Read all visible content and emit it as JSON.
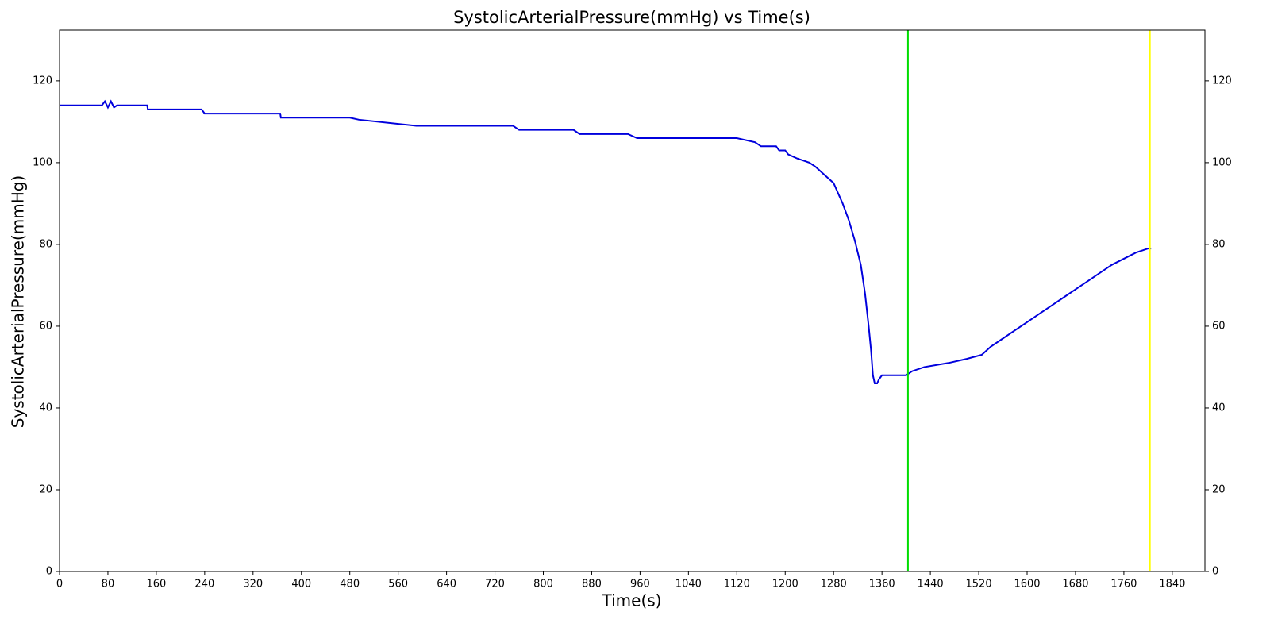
{
  "chart_data": {
    "type": "line",
    "title": "SystolicArterialPressure(mmHg) vs Time(s)",
    "x_label": "Time(s)",
    "y_label": "SystolicArterialPressure(mmHg)",
    "x": [
      0,
      70,
      75,
      80,
      85,
      90,
      95,
      145,
      146,
      175,
      235,
      240,
      320,
      365,
      366,
      400,
      480,
      495,
      590,
      750,
      760,
      850,
      860,
      940,
      955,
      1040,
      1120,
      1150,
      1160,
      1185,
      1190,
      1200,
      1205,
      1220,
      1240,
      1250,
      1265,
      1280,
      1295,
      1305,
      1315,
      1325,
      1332,
      1338,
      1342,
      1345,
      1348,
      1352,
      1355,
      1360,
      1400,
      1410,
      1430,
      1470,
      1500,
      1525,
      1540,
      1560,
      1580,
      1600,
      1620,
      1640,
      1660,
      1680,
      1700,
      1720,
      1740,
      1760,
      1780,
      1800,
      1805
    ],
    "series": [
      {
        "name": "SystolicArterialPressure(mmHg)",
        "color": "#0000dd",
        "values": [
          114,
          114,
          115,
          113.5,
          115,
          113.5,
          114,
          114,
          113,
          113,
          113,
          112,
          112,
          112,
          111,
          111,
          111,
          110.5,
          109,
          109,
          108,
          108,
          107,
          107,
          106,
          106,
          106,
          105,
          104,
          104,
          103,
          103,
          102,
          101,
          100,
          99,
          97,
          95,
          90,
          86,
          81,
          75,
          68,
          60,
          54,
          48,
          46,
          46,
          47,
          48,
          48,
          49,
          50,
          51,
          52,
          53,
          55,
          57,
          59,
          61,
          63,
          65,
          67,
          69,
          71,
          73,
          75,
          76.5,
          78,
          79,
          79
        ]
      }
    ],
    "vlines": [
      {
        "x": 1403,
        "color": "#00dd00"
      },
      {
        "x": 1803,
        "color": "#ffff00"
      }
    ],
    "xlim": [
      0,
      1894
    ],
    "xticks": [
      0,
      80,
      160,
      240,
      320,
      400,
      480,
      560,
      640,
      720,
      800,
      880,
      960,
      1040,
      1120,
      1200,
      1280,
      1360,
      1440,
      1520,
      1600,
      1680,
      1760,
      1840
    ],
    "ylim": [
      0,
      132.4
    ],
    "yticks": [
      0,
      20,
      40,
      60,
      80,
      100,
      120
    ],
    "y2lim": [
      0,
      132.4
    ],
    "y2ticks": [
      0,
      20,
      40,
      60,
      80,
      100,
      120
    ],
    "grid": false
  }
}
